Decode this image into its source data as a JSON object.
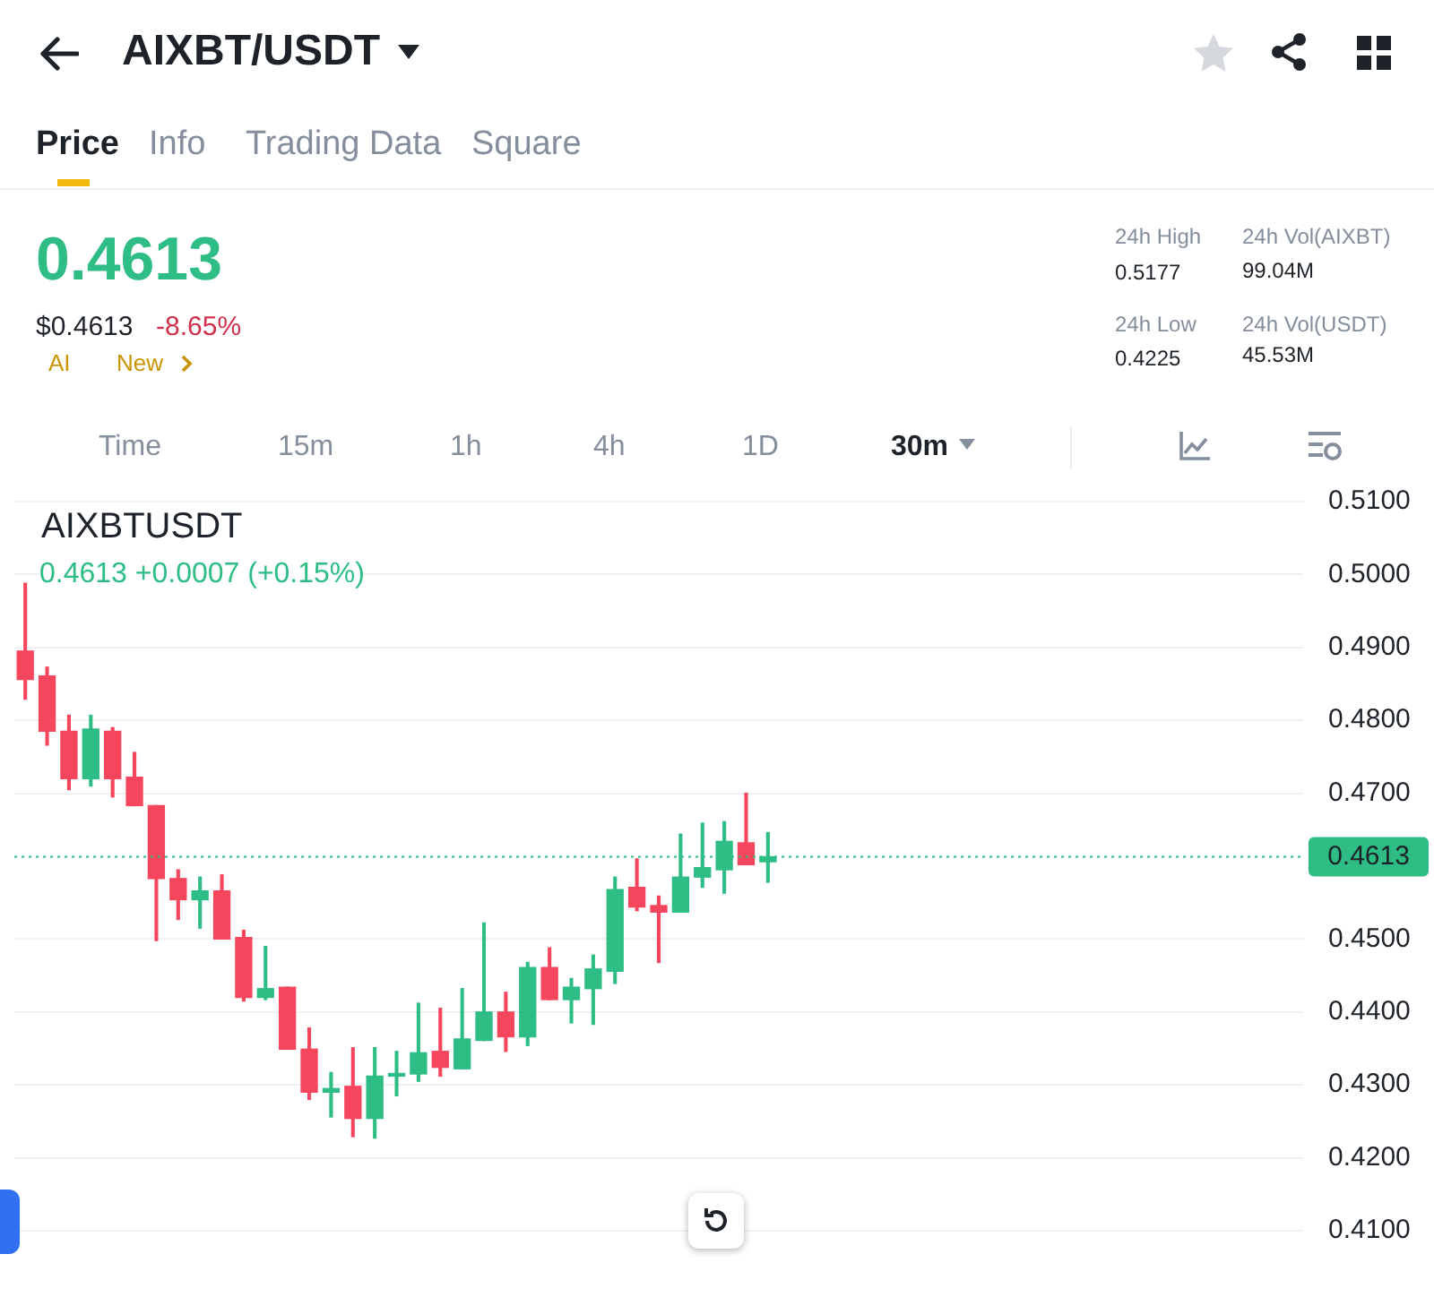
{
  "chart_data": {
    "type": "candlestick",
    "title": "AIXBT/USDT",
    "subtitle": "0.4613 +0.0007 (+0.15%)",
    "annotations": [
      "Price",
      "Info",
      "Trading Data",
      "Square",
      "0.4613",
      "$0.4613",
      "-8.65%",
      "AI",
      "New",
      "24h High",
      "0.5177",
      "24h Low",
      "0.4225",
      "24h Vol(AIXBT)",
      "99.04M",
      "24h Vol(USDT)",
      "45.53M",
      "Time",
      "15m",
      "1h",
      "4h",
      "1D",
      "30m",
      "AIXBTUSDT"
    ],
    "categories": [
      null,
      null,
      null,
      null,
      null,
      null,
      null,
      null,
      null,
      null,
      null,
      null,
      null,
      null,
      null,
      null,
      null,
      null,
      null,
      null,
      null,
      null,
      null,
      null,
      null,
      null,
      null,
      null,
      null,
      null,
      null,
      null,
      null,
      null,
      null,
      null,
      null,
      null,
      null,
      null,
      null,
      null,
      null,
      null,
      null,
      null,
      null,
      null,
      null,
      null,
      null,
      null,
      null,
      null,
      null,
      null,
      null,
      null,
      null
    ],
    "ohlc": [
      [
        0.4895,
        0.4988,
        0.4829,
        0.4856
      ],
      [
        0.4861,
        0.4873,
        0.4766,
        0.4785
      ],
      [
        0.4785,
        0.4807,
        0.4705,
        0.472
      ],
      [
        0.472,
        0.4807,
        0.471,
        0.4788
      ],
      [
        0.4785,
        0.479,
        0.4695,
        0.472
      ],
      [
        0.4722,
        0.4756,
        0.4683,
        0.4683
      ],
      [
        0.4683,
        0.4683,
        0.4498,
        0.4583
      ],
      [
        0.4583,
        0.4595,
        0.4527,
        0.4554
      ],
      [
        0.4554,
        0.4585,
        0.4515,
        0.4566
      ],
      [
        0.4566,
        0.4588,
        0.45,
        0.45
      ],
      [
        0.4502,
        0.4512,
        0.4415,
        0.442
      ],
      [
        0.442,
        0.449,
        0.4417,
        0.4432
      ],
      [
        0.4434,
        0.4434,
        0.4349,
        0.4349
      ],
      [
        0.4349,
        0.4378,
        0.428,
        0.429
      ],
      [
        0.429,
        0.4317,
        0.4256,
        0.4295
      ],
      [
        0.4298,
        0.4351,
        0.4229,
        0.4254
      ],
      [
        0.4254,
        0.4351,
        0.4227,
        0.4312
      ],
      [
        0.4312,
        0.4346,
        0.4285,
        0.4315
      ],
      [
        0.4315,
        0.4412,
        0.4305,
        0.4344
      ],
      [
        0.4346,
        0.4405,
        0.4312,
        0.4324
      ],
      [
        0.4322,
        0.4432,
        0.4322,
        0.4363
      ],
      [
        0.4361,
        0.4522,
        0.4361,
        0.44
      ],
      [
        0.44,
        0.4427,
        0.4346,
        0.4366
      ],
      [
        0.4366,
        0.4468,
        0.4354,
        0.4461
      ],
      [
        0.4461,
        0.4488,
        0.4417,
        0.4417
      ],
      [
        0.4417,
        0.4446,
        0.4385,
        0.4434
      ],
      [
        0.4432,
        0.4478,
        0.4383,
        0.4459
      ],
      [
        0.4456,
        0.4585,
        0.4439,
        0.4568
      ],
      [
        0.4571,
        0.461,
        0.4539,
        0.4544
      ],
      [
        0.4546,
        0.4559,
        0.4468,
        0.4537
      ],
      [
        0.4537,
        0.4644,
        0.4537,
        0.4585
      ],
      [
        0.4585,
        0.4659,
        0.4571,
        0.4598
      ],
      [
        0.4595,
        0.4661,
        0.4563,
        0.4634
      ],
      [
        0.4632,
        0.47,
        0.4602,
        0.4602
      ],
      [
        0.4606,
        0.4646,
        0.4578,
        0.4613
      ],
      null,
      null,
      null,
      null,
      null,
      null,
      null,
      null,
      null,
      null,
      null,
      null,
      null,
      null,
      null,
      null,
      null,
      null,
      null,
      null,
      null,
      null,
      null,
      null
    ],
    "colors": [
      "#f6465d",
      "#f6465d",
      "#f6465d",
      "#2ebd85",
      "#f6465d",
      "#f6465d",
      "#f6465d",
      "#f6465d",
      "#2ebd85",
      "#f6465d",
      "#f6465d",
      "#2ebd85",
      "#f6465d",
      "#f6465d",
      "#2ebd85",
      "#f6465d",
      "#2ebd85",
      "#2ebd85",
      "#2ebd85",
      "#f6465d",
      "#2ebd85",
      "#2ebd85",
      "#f6465d",
      "#2ebd85",
      "#f6465d",
      "#2ebd85",
      "#2ebd85",
      "#2ebd85",
      "#f6465d",
      "#f6465d",
      "#2ebd85",
      "#2ebd85",
      "#2ebd85",
      "#f6465d",
      "#2ebd85",
      null,
      null,
      null,
      null,
      null,
      null,
      null,
      null,
      null,
      null,
      null,
      null,
      null,
      null,
      null,
      null,
      null,
      null,
      null,
      null,
      null,
      null,
      null,
      null
    ],
    "ylim": [
      0.41,
      0.51
    ],
    "yticks": [
      {
        "value": 0.41,
        "label": "0.4100"
      },
      {
        "value": 0.42,
        "label": "0.4200"
      },
      {
        "value": 0.43,
        "label": "0.4300"
      },
      {
        "value": 0.44,
        "label": "0.4400"
      },
      {
        "value": 0.45,
        "label": "0.4500"
      },
      {
        "value": 0.47,
        "label": "0.4700"
      },
      {
        "value": 0.48,
        "label": "0.4800"
      },
      {
        "value": 0.49,
        "label": "0.4900"
      },
      {
        "value": 0.5,
        "label": "0.5000"
      },
      {
        "value": 0.51,
        "label": "0.5100"
      }
    ],
    "grid": "y",
    "tick_labels": "y",
    "ref_lines": [
      {
        "axis": "y",
        "value": 0.4613,
        "label": "0.4613",
        "color": "#2ebd85",
        "line_style": "dotted"
      }
    ]
  }
}
